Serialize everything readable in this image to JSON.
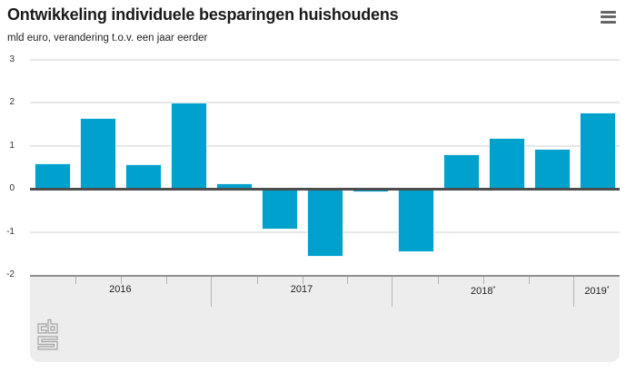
{
  "header": {
    "title": "Ontwikkeling individuele besparingen huishoudens",
    "subtitle": "mld euro, verandering t.o.v. een jaar eerder",
    "menu_icon": "hamburger-menu"
  },
  "footer": {
    "logo": "cbs-logo"
  },
  "chart_data": {
    "type": "bar",
    "title": "Ontwikkeling individuele besparingen huishoudens",
    "subtitle": "mld euro, verandering t.o.v. een jaar eerder",
    "ylabel": "mld euro, verandering t.o.v. een jaar eerder",
    "xlabel": "",
    "ylim": [
      -2,
      3
    ],
    "yticks": [
      3,
      2,
      1,
      0,
      -1,
      -2
    ],
    "grid": true,
    "legend": "none",
    "x_groups": [
      {
        "label": "2016",
        "suffix": "",
        "quarters": 4
      },
      {
        "label": "2017",
        "suffix": "",
        "quarters": 4
      },
      {
        "label": "2018",
        "suffix": "*",
        "quarters": 4
      },
      {
        "label": "2019",
        "suffix": "*",
        "quarters": 1
      }
    ],
    "values": [
      0.6,
      1.65,
      0.57,
      2.0,
      0.14,
      -0.95,
      -1.57,
      -0.08,
      -1.48,
      0.8,
      1.19,
      0.93,
      1.77
    ],
    "colors": {
      "bar": "#00a1cd",
      "zero_line": "#4d4d4d",
      "grid_line": "#e7e7e7",
      "band_bg": "#ededed",
      "axis_border": "#8f8f8f"
    }
  }
}
